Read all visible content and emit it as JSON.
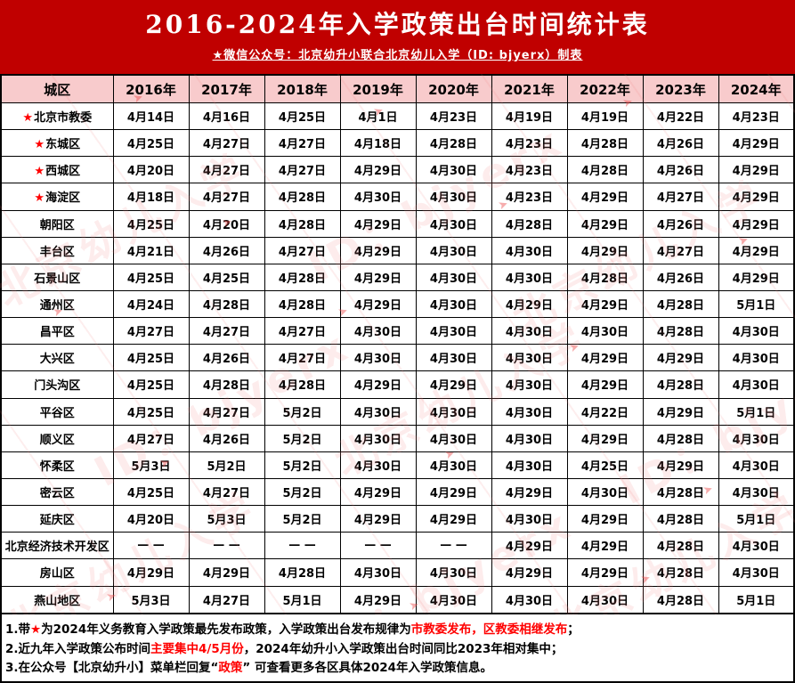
{
  "banner": {
    "title": "2016-2024年入学政策出台时间统计表",
    "subtitle": "★微信公众号：北京幼升小联合北京幼儿入学（ID: bjyerx）制表",
    "background_color": "#C00000"
  },
  "colors": {
    "banner_red": "#C00000",
    "header_pink": "#F8CBCC",
    "accent_red": "#FF0000",
    "border_black": "#000000"
  },
  "table": {
    "star_glyph": "★",
    "header": [
      "城区",
      "2016年",
      "2017年",
      "2018年",
      "2019年",
      "2020年",
      "2021年",
      "2022年",
      "2023年",
      "2024年"
    ],
    "rows": [
      {
        "district": "北京市教委",
        "star": true,
        "dates": [
          "4月14日",
          "4月16日",
          "4月25日",
          "4月1日",
          "4月23日",
          "4月19日",
          "4月19日",
          "4月22日",
          "4月23日"
        ]
      },
      {
        "district": "东城区",
        "star": true,
        "dates": [
          "4月25日",
          "4月27日",
          "4月27日",
          "4月18日",
          "4月28日",
          "4月23日",
          "4月28日",
          "4月26日",
          "4月29日"
        ]
      },
      {
        "district": "西城区",
        "star": true,
        "dates": [
          "4月20日",
          "4月27日",
          "4月27日",
          "4月29日",
          "4月30日",
          "4月23日",
          "4月28日",
          "4月26日",
          "4月29日"
        ]
      },
      {
        "district": "海淀区",
        "star": true,
        "dates": [
          "4月18日",
          "4月27日",
          "4月28日",
          "4月30日",
          "4月30日",
          "4月23日",
          "4月29日",
          "4月27日",
          "4月29日"
        ]
      },
      {
        "district": "朝阳区",
        "star": false,
        "dates": [
          "4月25日",
          "4月20日",
          "4月28日",
          "4月29日",
          "4月30日",
          "4月28日",
          "4月29日",
          "4月26日",
          "4月29日"
        ]
      },
      {
        "district": "丰台区",
        "star": false,
        "dates": [
          "4月21日",
          "4月26日",
          "4月27日",
          "4月29日",
          "4月30日",
          "4月30日",
          "4月29日",
          "4月27日",
          "4月29日"
        ]
      },
      {
        "district": "石景山区",
        "star": false,
        "dates": [
          "4月25日",
          "4月25日",
          "4月28日",
          "4月29日",
          "4月30日",
          "4月30日",
          "4月28日",
          "4月26日",
          "4月29日"
        ]
      },
      {
        "district": "通州区",
        "star": false,
        "dates": [
          "4月24日",
          "4月28日",
          "4月28日",
          "4月29日",
          "4月30日",
          "4月29日",
          "4月29日",
          "4月28日",
          "5月1日"
        ]
      },
      {
        "district": "昌平区",
        "star": false,
        "dates": [
          "4月27日",
          "4月27日",
          "4月27日",
          "4月30日",
          "4月30日",
          "4月30日",
          "4月30日",
          "4月28日",
          "4月30日"
        ]
      },
      {
        "district": "大兴区",
        "star": false,
        "dates": [
          "4月25日",
          "4月26日",
          "4月27日",
          "4月30日",
          "4月30日",
          "4月30日",
          "4月29日",
          "4月29日",
          "4月30日"
        ]
      },
      {
        "district": "门头沟区",
        "star": false,
        "dates": [
          "4月25日",
          "4月28日",
          "4月28日",
          "4月29日",
          "4月29日",
          "4月30日",
          "4月29日",
          "4月28日",
          "4月30日"
        ]
      },
      {
        "district": "平谷区",
        "star": false,
        "dates": [
          "4月25日",
          "4月27日",
          "5月2日",
          "4月30日",
          "4月30日",
          "4月30日",
          "4月22日",
          "4月29日",
          "5月1日"
        ]
      },
      {
        "district": "顺义区",
        "star": false,
        "dates": [
          "4月27日",
          "4月26日",
          "5月2日",
          "4月30日",
          "4月30日",
          "4月30日",
          "4月29日",
          "4月28日",
          "4月30日"
        ]
      },
      {
        "district": "怀柔区",
        "star": false,
        "dates": [
          "5月3日",
          "5月2日",
          "5月2日",
          "4月30日",
          "4月30日",
          "4月30日",
          "4月25日",
          "4月29日",
          "4月30日"
        ]
      },
      {
        "district": "密云区",
        "star": false,
        "dates": [
          "4月25日",
          "4月27日",
          "5月2日",
          "4月29日",
          "4月29日",
          "4月29日",
          "4月30日",
          "4月28日",
          "4月30日"
        ]
      },
      {
        "district": "延庆区",
        "star": false,
        "dates": [
          "4月20日",
          "5月3日",
          "5月2日",
          "4月29日",
          "4月29日",
          "4月30日",
          "4月29日",
          "4月28日",
          "5月1日"
        ]
      },
      {
        "district": "北京经济技术开发区",
        "star": false,
        "dates": [
          "— —",
          "— —",
          "— —",
          "— —",
          "— —",
          "4月29日",
          "4月29日",
          "4月28日",
          "4月30日"
        ]
      },
      {
        "district": "房山区",
        "star": false,
        "dates": [
          "4月29日",
          "4月29日",
          "4月28日",
          "4月30日",
          "4月30日",
          "4月29日",
          "4月29日",
          "4月28日",
          "4月30日"
        ]
      },
      {
        "district": "燕山地区",
        "star": false,
        "dates": [
          "5月3日",
          "4月27日",
          "5月1日",
          "4月29日",
          "4月30日",
          "4月30日",
          "4月30日",
          "4月28日",
          "5月1日"
        ]
      }
    ]
  },
  "notes": [
    {
      "segments": [
        {
          "text": "1.带",
          "red": false
        },
        {
          "text": "★",
          "red": true
        },
        {
          "text": "为2024年义务教育入学政策最先发布政策，入学政策出台发布规律为",
          "red": false
        },
        {
          "text": "市教委发布，区教委相继发布",
          "red": true
        },
        {
          "text": "；",
          "red": false
        }
      ]
    },
    {
      "segments": [
        {
          "text": "2.近九年入学政策公布时间",
          "red": false
        },
        {
          "text": "主要集中4/5月份",
          "red": true
        },
        {
          "text": "，2024年幼升小入学政策出台时间同比2023年相对集中；",
          "red": false
        }
      ]
    },
    {
      "segments": [
        {
          "text": "3.在公众号【北京幼升小】菜单栏回复“",
          "red": false
        },
        {
          "text": "政策",
          "red": true
        },
        {
          "text": "” 可查看更多各区具体2024年入学政策信息。",
          "red": false
        }
      ]
    }
  ],
  "watermark": {
    "text_cn": "北京幼儿入学",
    "text_id": "ID：bjyerx",
    "arrow_glyph": "➤"
  }
}
